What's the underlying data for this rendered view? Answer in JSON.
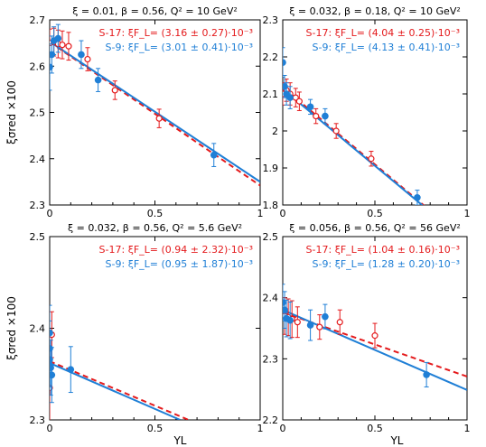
{
  "colors": {
    "s17": "#e41a1c",
    "s9": "#1f7fd6"
  },
  "chart_data": [
    {
      "type": "scatter",
      "title": "ξ = 0.01, β = 0.56, Q² = 10 GeV²",
      "xlim": [
        0,
        1
      ],
      "ylim": [
        2.3,
        2.7
      ],
      "xticks": [
        "0",
        "0.5",
        "1"
      ],
      "yticks": [
        "2.3",
        "2.4",
        "2.5",
        "2.6",
        "2.7"
      ],
      "ylabel": "ξσred ×100",
      "xlabel": "",
      "legend": [
        "S-17: ξF_L= (3.16 ± 0.27)·10⁻³",
        "S-9: ξF_L= (3.01 ± 0.41)·10⁻³"
      ],
      "series": [
        {
          "name": "S-17",
          "marker": "open-circle",
          "points": [
            [
              0.0,
              2.65,
              0.03
            ],
            [
              0.02,
              2.652,
              0.03
            ],
            [
              0.04,
              2.648,
              0.03
            ],
            [
              0.06,
              2.646,
              0.03
            ],
            [
              0.09,
              2.643,
              0.03
            ],
            [
              0.18,
              2.615,
              0.025
            ],
            [
              0.31,
              2.548,
              0.02
            ],
            [
              0.52,
              2.487,
              0.02
            ]
          ],
          "fit": [
            [
              0,
              2.652
            ],
            [
              1,
              2.342
            ]
          ]
        },
        {
          "name": "S-9",
          "marker": "filled-circle",
          "points": [
            [
              0.0,
              2.598,
              0.05
            ],
            [
              0.01,
              2.625,
              0.04
            ],
            [
              0.02,
              2.655,
              0.03
            ],
            [
              0.04,
              2.66,
              0.03
            ],
            [
              0.15,
              2.625,
              0.03
            ],
            [
              0.23,
              2.57,
              0.025
            ],
            [
              0.78,
              2.408,
              0.025
            ]
          ],
          "fit": [
            [
              0,
              2.653
            ],
            [
              1,
              2.35
            ]
          ]
        }
      ]
    },
    {
      "type": "scatter",
      "title": "ξ = 0.032, β = 0.18, Q² = 10 GeV²",
      "xlim": [
        0,
        1
      ],
      "ylim": [
        1.8,
        2.3
      ],
      "xticks": [
        "0",
        "0.5",
        "1"
      ],
      "yticks": [
        "1.8",
        "1.9",
        "2",
        "2.1",
        "2.2",
        "2.3"
      ],
      "ylabel": "",
      "xlabel": "",
      "legend": [
        "S-17: ξF_L= (4.04 ± 0.25)·10⁻³",
        "S-9: ξF_L= (4.13 ± 0.41)·10⁻³"
      ],
      "series": [
        {
          "name": "S-17",
          "marker": "open-circle",
          "points": [
            [
              0.0,
              2.1,
              0.03
            ],
            [
              0.02,
              2.11,
              0.03
            ],
            [
              0.04,
              2.1,
              0.03
            ],
            [
              0.07,
              2.09,
              0.025
            ],
            [
              0.09,
              2.08,
              0.025
            ],
            [
              0.18,
              2.04,
              0.02
            ],
            [
              0.29,
              2.0,
              0.02
            ],
            [
              0.48,
              1.925,
              0.02
            ]
          ],
          "fit": [
            [
              0,
              2.118
            ],
            [
              0.78,
              1.793
            ]
          ]
        },
        {
          "name": "S-9",
          "marker": "filled-circle",
          "points": [
            [
              0.0,
              2.185,
              0.04
            ],
            [
              0.01,
              2.12,
              0.03
            ],
            [
              0.02,
              2.1,
              0.03
            ],
            [
              0.04,
              2.09,
              0.03
            ],
            [
              0.15,
              2.065,
              0.02
            ],
            [
              0.23,
              2.04,
              0.02
            ],
            [
              0.73,
              1.82,
              0.02
            ]
          ],
          "fit": [
            [
              0,
              2.113
            ],
            [
              0.78,
              1.79
            ]
          ]
        }
      ]
    },
    {
      "type": "scatter",
      "title": "ξ = 0.032, β = 0.56, Q² = 5.6 GeV²",
      "xlim": [
        0,
        1
      ],
      "ylim": [
        2.3,
        2.5
      ],
      "xticks": [
        "0",
        "0.5",
        "1"
      ],
      "yticks": [
        "2.3",
        "2.4",
        "2.5"
      ],
      "ylabel": "ξσred ×100",
      "xlabel": "YL",
      "legend": [
        "S-17: ξF_L= (0.94 ± 2.32)·10⁻³",
        "S-9: ξF_L= (0.95 ± 1.87)·10⁻³"
      ],
      "series": [
        {
          "name": "S-17",
          "marker": "open-circle",
          "points": [
            [
              0.0,
              2.335,
              0.04
            ],
            [
              0.01,
              2.393,
              0.025
            ]
          ],
          "fit": [
            [
              0,
              2.364
            ],
            [
              0.66,
              2.3
            ]
          ]
        },
        {
          "name": "S-9",
          "marker": "filled-circle",
          "points": [
            [
              0.0,
              2.395,
              0.03
            ],
            [
              0.0,
              2.378,
              0.03
            ],
            [
              0.0,
              2.366,
              0.03
            ],
            [
              0.005,
              2.357,
              0.03
            ],
            [
              0.01,
              2.349,
              0.03
            ],
            [
              0.1,
              2.355,
              0.025
            ]
          ],
          "fit": [
            [
              0,
              2.362
            ],
            [
              0.62,
              2.3
            ]
          ]
        }
      ]
    },
    {
      "type": "scatter",
      "title": "ξ = 0.056, β = 0.56, Q² = 56 GeV²",
      "xlim": [
        0,
        1
      ],
      "ylim": [
        2.2,
        2.5
      ],
      "xticks": [
        "0",
        "0.5",
        "1"
      ],
      "yticks": [
        "2.2",
        "2.3",
        "2.4",
        "2.5"
      ],
      "ylabel": "",
      "xlabel": "YL",
      "legend": [
        "S-17: ξF_L= (1.04 ± 0.16)·10⁻³",
        "S-9: ξF_L= (1.28 ± 0.20)·10⁻³"
      ],
      "series": [
        {
          "name": "S-17",
          "marker": "open-circle",
          "points": [
            [
              0.01,
              2.37,
              0.03
            ],
            [
              0.03,
              2.368,
              0.03
            ],
            [
              0.05,
              2.365,
              0.03
            ],
            [
              0.08,
              2.36,
              0.025
            ],
            [
              0.2,
              2.352,
              0.02
            ],
            [
              0.31,
              2.36,
              0.02
            ],
            [
              0.5,
              2.338,
              0.02
            ]
          ],
          "fit": [
            [
              0,
              2.376
            ],
            [
              1,
              2.271
            ]
          ]
        },
        {
          "name": "S-9",
          "marker": "filled-circle",
          "points": [
            [
              0.0,
              2.392,
              0.03
            ],
            [
              0.01,
              2.38,
              0.03
            ],
            [
              0.02,
              2.366,
              0.03
            ],
            [
              0.04,
              2.363,
              0.03
            ],
            [
              0.15,
              2.355,
              0.025
            ],
            [
              0.23,
              2.369,
              0.02
            ],
            [
              0.78,
              2.274,
              0.02
            ]
          ],
          "fit": [
            [
              0,
              2.38
            ],
            [
              1,
              2.249
            ]
          ]
        }
      ]
    }
  ]
}
